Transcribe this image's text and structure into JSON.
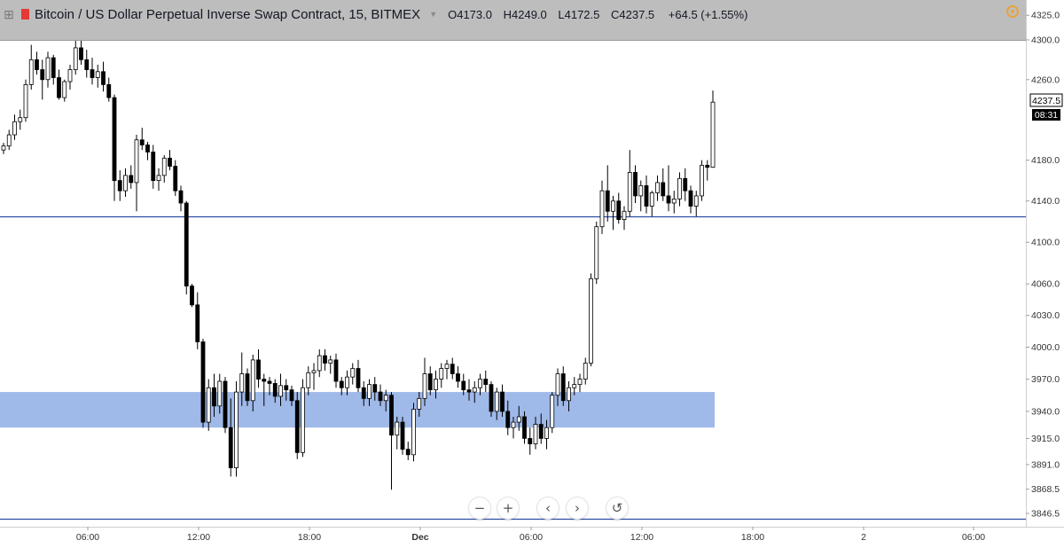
{
  "header": {
    "title": "Bitcoin / US Dollar Perpetual Inverse Swap Contract, 15, BITMEX",
    "open": "O4173.0",
    "high": "H4249.0",
    "low": "L4172.5",
    "close": "C4237.5",
    "change": "+64.5 (+1.55%)",
    "icons": [
      "plus-icon",
      "flag-icon",
      "caret-down-icon",
      "gear-icon"
    ]
  },
  "price_label": "4237.5",
  "countdown": "08:31",
  "controls": {
    "zoom_out": "−",
    "zoom_in": "+",
    "scroll_left": "‹",
    "scroll_right": "›",
    "reset": "↺"
  },
  "colors": {
    "candle_body_up": "#ffffff",
    "candle_body_down": "#000000",
    "wick": "#000000",
    "support_zone": "#9fb9e8",
    "horizontal_line": "#2f4ea3",
    "header_bg": "#bdbdbd"
  },
  "chart_data": {
    "type": "candlestick",
    "y_scale": "log",
    "ylim": [
      3835,
      4330
    ],
    "y_tick_labels": [
      "4325.0",
      "4300.0",
      "4260.0",
      "4180.0",
      "4140.0",
      "4100.0",
      "4060.0",
      "4030.0",
      "4000.0",
      "3970.0",
      "3940.0",
      "3915.0",
      "3891.0",
      "3868.5",
      "3846.5"
    ],
    "x_tick_labels": [
      "06:00",
      "12:00",
      "18:00",
      "Dec",
      "06:00",
      "12:00",
      "18:00",
      "2",
      "06:00"
    ],
    "candles_ohlc": [
      [
        4190,
        4197,
        4186,
        4194
      ],
      [
        4194,
        4210,
        4190,
        4205
      ],
      [
        4205,
        4225,
        4200,
        4218
      ],
      [
        4218,
        4230,
        4210,
        4222
      ],
      [
        4222,
        4260,
        4218,
        4255
      ],
      [
        4255,
        4295,
        4250,
        4280
      ],
      [
        4280,
        4288,
        4265,
        4270
      ],
      [
        4270,
        4280,
        4240,
        4260
      ],
      [
        4260,
        4288,
        4252,
        4282
      ],
      [
        4282,
        4285,
        4255,
        4262
      ],
      [
        4262,
        4270,
        4240,
        4242
      ],
      [
        4242,
        4260,
        4238,
        4258
      ],
      [
        4258,
        4275,
        4250,
        4270
      ],
      [
        4270,
        4300,
        4265,
        4292
      ],
      [
        4292,
        4305,
        4275,
        4280
      ],
      [
        4280,
        4290,
        4262,
        4270
      ],
      [
        4270,
        4282,
        4255,
        4262
      ],
      [
        4262,
        4275,
        4252,
        4268
      ],
      [
        4268,
        4278,
        4248,
        4255
      ],
      [
        4255,
        4262,
        4238,
        4242
      ],
      [
        4242,
        4245,
        4140,
        4160
      ],
      [
        4160,
        4170,
        4140,
        4150
      ],
      [
        4150,
        4172,
        4144,
        4165
      ],
      [
        4165,
        4175,
        4152,
        4158
      ],
      [
        4158,
        4205,
        4130,
        4200
      ],
      [
        4200,
        4212,
        4190,
        4195
      ],
      [
        4195,
        4198,
        4180,
        4188
      ],
      [
        4188,
        4195,
        4152,
        4160
      ],
      [
        4160,
        4172,
        4150,
        4165
      ],
      [
        4165,
        4185,
        4158,
        4182
      ],
      [
        4182,
        4190,
        4170,
        4174
      ],
      [
        4174,
        4180,
        4145,
        4150
      ],
      [
        4150,
        4155,
        4130,
        4138
      ],
      [
        4138,
        4140,
        4050,
        4058
      ],
      [
        4058,
        4060,
        4038,
        4040
      ],
      [
        4040,
        4052,
        3998,
        4005
      ],
      [
        4005,
        4008,
        3925,
        3930
      ],
      [
        3930,
        3970,
        3922,
        3962
      ],
      [
        3962,
        3975,
        3935,
        3945
      ],
      [
        3945,
        3975,
        3938,
        3968
      ],
      [
        3968,
        3972,
        3920,
        3925
      ],
      [
        3925,
        3952,
        3880,
        3888
      ],
      [
        3888,
        3968,
        3880,
        3958
      ],
      [
        3958,
        3995,
        3945,
        3975
      ],
      [
        3975,
        3980,
        3945,
        3950
      ],
      [
        3950,
        3993,
        3940,
        3988
      ],
      [
        3988,
        3998,
        3962,
        3970
      ],
      [
        3970,
        3975,
        3945,
        3968
      ],
      [
        3968,
        3972,
        3955,
        3966
      ],
      [
        3966,
        3970,
        3948,
        3954
      ],
      [
        3954,
        3975,
        3945,
        3964
      ],
      [
        3964,
        3970,
        3950,
        3960
      ],
      [
        3960,
        3964,
        3945,
        3950
      ],
      [
        3950,
        3958,
        3896,
        3902
      ],
      [
        3902,
        3970,
        3898,
        3962
      ],
      [
        3962,
        3982,
        3955,
        3976
      ],
      [
        3976,
        3985,
        3960,
        3978
      ],
      [
        3978,
        3998,
        3972,
        3992
      ],
      [
        3992,
        3998,
        3978,
        3985
      ],
      [
        3985,
        3992,
        3975,
        3988
      ],
      [
        3988,
        3994,
        3962,
        3968
      ],
      [
        3968,
        3972,
        3955,
        3962
      ],
      [
        3962,
        3978,
        3955,
        3972
      ],
      [
        3972,
        3985,
        3965,
        3980
      ],
      [
        3980,
        3988,
        3958,
        3962
      ],
      [
        3962,
        3968,
        3945,
        3952
      ],
      [
        3952,
        3970,
        3945,
        3965
      ],
      [
        3965,
        3972,
        3950,
        3958
      ],
      [
        3958,
        3965,
        3945,
        3950
      ],
      [
        3950,
        3960,
        3940,
        3955
      ],
      [
        3955,
        3958,
        3868,
        3918
      ],
      [
        3918,
        3935,
        3905,
        3930
      ],
      [
        3930,
        3935,
        3900,
        3905
      ],
      [
        3905,
        3912,
        3895,
        3900
      ],
      [
        3900,
        3948,
        3894,
        3942
      ],
      [
        3942,
        3958,
        3935,
        3952
      ],
      [
        3952,
        3990,
        3945,
        3975
      ],
      [
        3975,
        3982,
        3955,
        3960
      ],
      [
        3960,
        3978,
        3952,
        3970
      ],
      [
        3970,
        3985,
        3962,
        3980
      ],
      [
        3980,
        3988,
        3970,
        3984
      ],
      [
        3984,
        3990,
        3970,
        3975
      ],
      [
        3975,
        3982,
        3962,
        3968
      ],
      [
        3968,
        3975,
        3955,
        3960
      ],
      [
        3960,
        3970,
        3950,
        3958
      ],
      [
        3958,
        3968,
        3948,
        3962
      ],
      [
        3962,
        3975,
        3955,
        3970
      ],
      [
        3970,
        3978,
        3958,
        3965
      ],
      [
        3965,
        3968,
        3935,
        3940
      ],
      [
        3940,
        3962,
        3932,
        3958
      ],
      [
        3958,
        3965,
        3935,
        3940
      ],
      [
        3940,
        3950,
        3918,
        3925
      ],
      [
        3925,
        3935,
        3915,
        3930
      ],
      [
        3930,
        3945,
        3922,
        3935
      ],
      [
        3935,
        3940,
        3910,
        3915
      ],
      [
        3915,
        3925,
        3900,
        3910
      ],
      [
        3910,
        3935,
        3905,
        3928
      ],
      [
        3928,
        3938,
        3910,
        3915
      ],
      [
        3915,
        3932,
        3905,
        3925
      ],
      [
        3925,
        3958,
        3920,
        3955
      ],
      [
        3955,
        3980,
        3945,
        3975
      ],
      [
        3975,
        3982,
        3945,
        3950
      ],
      [
        3950,
        3968,
        3940,
        3962
      ],
      [
        3962,
        3972,
        3955,
        3965
      ],
      [
        3965,
        3975,
        3958,
        3970
      ],
      [
        3970,
        3990,
        3965,
        3985
      ],
      [
        3985,
        4070,
        3982,
        4065
      ],
      [
        4065,
        4120,
        4060,
        4115
      ],
      [
        4115,
        4160,
        4108,
        4150
      ],
      [
        4150,
        4175,
        4120,
        4130
      ],
      [
        4130,
        4145,
        4112,
        4140
      ],
      [
        4140,
        4148,
        4118,
        4122
      ],
      [
        4122,
        4135,
        4112,
        4130
      ],
      [
        4130,
        4190,
        4125,
        4168
      ],
      [
        4168,
        4175,
        4138,
        4145
      ],
      [
        4145,
        4160,
        4130,
        4155
      ],
      [
        4155,
        4165,
        4128,
        4135
      ],
      [
        4135,
        4150,
        4125,
        4148
      ],
      [
        4148,
        4165,
        4140,
        4158
      ],
      [
        4158,
        4172,
        4140,
        4145
      ],
      [
        4145,
        4175,
        4130,
        4138
      ],
      [
        4138,
        4150,
        4128,
        4142
      ],
      [
        4142,
        4168,
        4135,
        4162
      ],
      [
        4162,
        4172,
        4140,
        4150
      ],
      [
        4150,
        4155,
        4128,
        4135
      ],
      [
        4135,
        4150,
        4125,
        4145
      ],
      [
        4145,
        4180,
        4140,
        4175
      ],
      [
        4175,
        4180,
        4160,
        4173
      ],
      [
        4173,
        4249,
        4172.5,
        4237.5
      ]
    ],
    "horizontal_lines": [
      4125,
      3842
    ],
    "zones": [
      {
        "from": 3925,
        "to": 3958
      }
    ]
  }
}
